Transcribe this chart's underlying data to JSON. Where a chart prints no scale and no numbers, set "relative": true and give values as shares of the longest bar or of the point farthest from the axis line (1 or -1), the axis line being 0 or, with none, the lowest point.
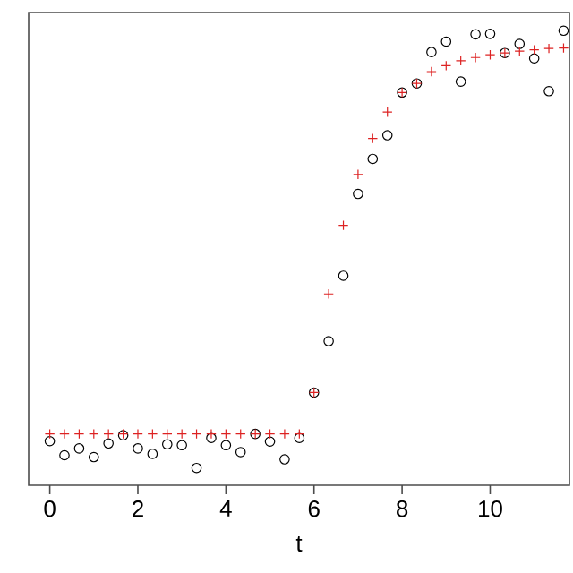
{
  "chart_data": {
    "type": "scatter",
    "xlabel": "t",
    "relative": true,
    "x": [
      0,
      0.333,
      0.667,
      1,
      1.333,
      1.667,
      2,
      2.333,
      2.667,
      3,
      3.333,
      3.667,
      4,
      4.333,
      4.667,
      5,
      5.333,
      5.667,
      6,
      6.333,
      6.667,
      7,
      7.333,
      7.667,
      8,
      8.333,
      8.667,
      9,
      9.333,
      9.667,
      10,
      10.333,
      10.667,
      11,
      11.333,
      11.667
    ],
    "xlim": [
      -0.48,
      11.8
    ],
    "xticks": [
      0,
      2,
      4,
      6,
      8,
      10
    ],
    "tick_labels": "x",
    "series": [
      {
        "color": "#000000",
        "marker": "circle",
        "values": [
          0.097,
          0.066,
          0.081,
          0.062,
          0.092,
          0.11,
          0.081,
          0.069,
          0.09,
          0.088,
          0.038,
          0.104,
          0.088,
          0.073,
          0.113,
          0.096,
          0.057,
          0.104,
          0.204,
          0.317,
          0.461,
          0.641,
          0.718,
          0.77,
          0.864,
          0.884,
          0.953,
          0.976,
          0.888,
          0.992,
          0.993,
          0.951,
          0.971,
          0.939,
          0.867,
          1
        ]
      },
      {
        "color": "#dd2222",
        "marker": "cross",
        "values": [
          0.113,
          0.113,
          0.113,
          0.113,
          0.113,
          0.113,
          0.113,
          0.113,
          0.113,
          0.113,
          0.113,
          0.113,
          0.113,
          0.113,
          0.113,
          0.113,
          0.113,
          0.113,
          0.204,
          0.421,
          0.572,
          0.684,
          0.763,
          0.821,
          0.864,
          0.884,
          0.91,
          0.923,
          0.934,
          0.941,
          0.947,
          0.951,
          0.955,
          0.958,
          0.961,
          0.962
        ]
      }
    ]
  }
}
